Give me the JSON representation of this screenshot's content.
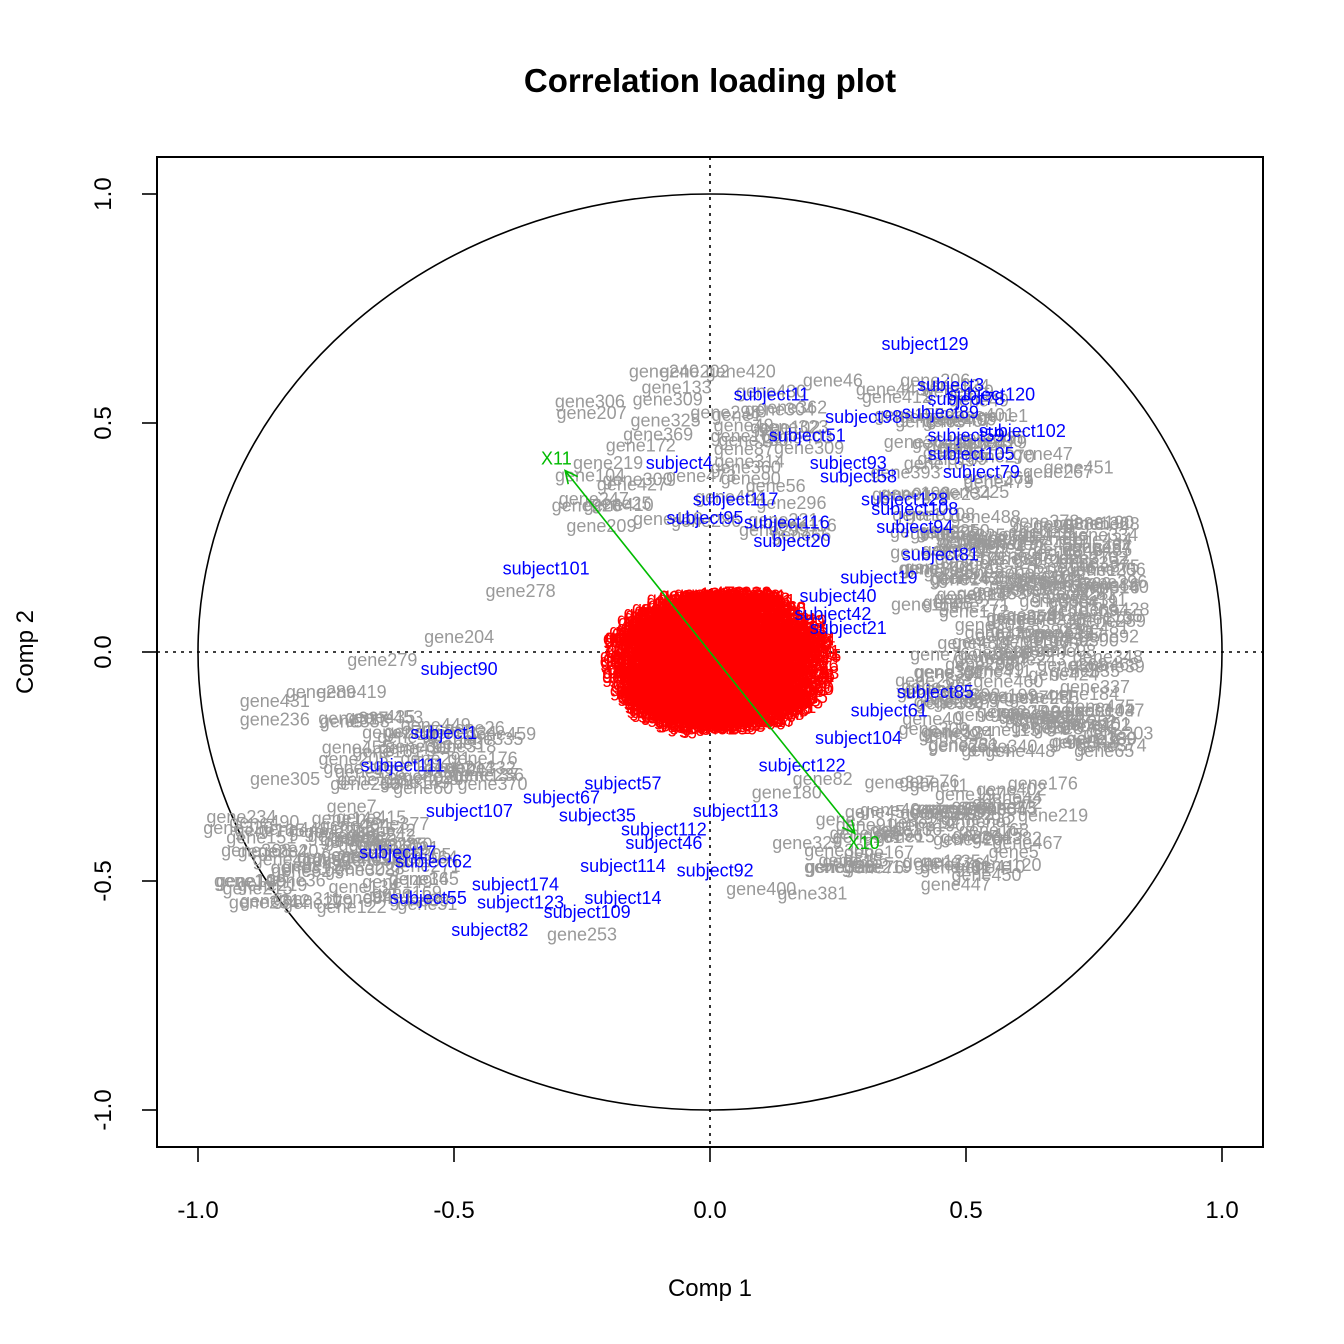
{
  "chart_data": {
    "type": "scatter",
    "title": "Correlation loading plot",
    "xlabel": "Comp 1",
    "ylabel": "Comp 2",
    "xlim": [
      -1.08,
      1.08
    ],
    "ylim": [
      -1.08,
      1.08
    ],
    "x_ticks": [
      -1.0,
      -0.5,
      0.0,
      0.5,
      1.0
    ],
    "x_tick_labels": [
      "-1.0",
      "-0.5",
      "0.0",
      "0.5",
      "1.0"
    ],
    "y_ticks": [
      -1.0,
      -0.5,
      0.0,
      0.5,
      1.0
    ],
    "y_tick_labels": [
      "-1.0",
      "-0.5",
      "0.0",
      "0.5",
      "1.0"
    ],
    "grid": false,
    "reference_lines": {
      "x": 0,
      "y": 0,
      "style": "dotted"
    },
    "unit_circle": true,
    "colors": {
      "genes": "#999999",
      "subjects": "#0000ff",
      "inner": "#ff0000",
      "vectors": "#00bb00"
    },
    "vectors": [
      {
        "label": "X11",
        "x": -0.3,
        "y": 0.42
      },
      {
        "label": "X10",
        "x": 0.3,
        "y": -0.42
      }
    ],
    "series": [
      {
        "group": "subjects",
        "points": [
          {
            "label": "subject129",
            "x": 0.42,
            "y": 0.67
          },
          {
            "label": "subject3",
            "x": 0.47,
            "y": 0.58
          },
          {
            "label": "subject120",
            "x": 0.55,
            "y": 0.56
          },
          {
            "label": "subject78",
            "x": 0.5,
            "y": 0.55
          },
          {
            "label": "subject11",
            "x": 0.12,
            "y": 0.56
          },
          {
            "label": "subject89",
            "x": 0.45,
            "y": 0.52
          },
          {
            "label": "subject98",
            "x": 0.3,
            "y": 0.51
          },
          {
            "label": "subject102",
            "x": 0.61,
            "y": 0.48
          },
          {
            "label": "subject59",
            "x": 0.5,
            "y": 0.47
          },
          {
            "label": "subject51",
            "x": 0.19,
            "y": 0.47
          },
          {
            "label": "subject105",
            "x": 0.51,
            "y": 0.43
          },
          {
            "label": "subject4",
            "x": -0.06,
            "y": 0.41
          },
          {
            "label": "subject93",
            "x": 0.27,
            "y": 0.41
          },
          {
            "label": "subject79",
            "x": 0.53,
            "y": 0.39
          },
          {
            "label": "subject58",
            "x": 0.29,
            "y": 0.38
          },
          {
            "label": "subject117",
            "x": 0.05,
            "y": 0.33
          },
          {
            "label": "subject128",
            "x": 0.38,
            "y": 0.33
          },
          {
            "label": "subject108",
            "x": 0.4,
            "y": 0.31
          },
          {
            "label": "subject95",
            "x": -0.01,
            "y": 0.29
          },
          {
            "label": "subject116",
            "x": 0.15,
            "y": 0.28
          },
          {
            "label": "subject94",
            "x": 0.4,
            "y": 0.27
          },
          {
            "label": "subject20",
            "x": 0.16,
            "y": 0.24
          },
          {
            "label": "subject81",
            "x": 0.45,
            "y": 0.21
          },
          {
            "label": "subject101",
            "x": -0.32,
            "y": 0.18
          },
          {
            "label": "subject19",
            "x": 0.33,
            "y": 0.16
          },
          {
            "label": "subject40",
            "x": 0.25,
            "y": 0.12
          },
          {
            "label": "subject42",
            "x": 0.24,
            "y": 0.08
          },
          {
            "label": "subject21",
            "x": 0.27,
            "y": 0.05
          },
          {
            "label": "subject90",
            "x": -0.49,
            "y": -0.04
          },
          {
            "label": "subject85",
            "x": 0.44,
            "y": -0.09
          },
          {
            "label": "subject61",
            "x": 0.35,
            "y": -0.13
          },
          {
            "label": "subject1",
            "x": -0.52,
            "y": -0.18
          },
          {
            "label": "subject104",
            "x": 0.29,
            "y": -0.19
          },
          {
            "label": "subject122",
            "x": 0.18,
            "y": -0.25
          },
          {
            "label": "subject111",
            "x": -0.6,
            "y": -0.25
          },
          {
            "label": "subject57",
            "x": -0.17,
            "y": -0.29
          },
          {
            "label": "subject67",
            "x": -0.29,
            "y": -0.32
          },
          {
            "label": "subject107",
            "x": -0.47,
            "y": -0.35
          },
          {
            "label": "subject113",
            "x": 0.05,
            "y": -0.35
          },
          {
            "label": "subject35",
            "x": -0.22,
            "y": -0.36
          },
          {
            "label": "subject112",
            "x": -0.09,
            "y": -0.39
          },
          {
            "label": "subject46",
            "x": -0.09,
            "y": -0.42
          },
          {
            "label": "subject17",
            "x": -0.61,
            "y": -0.44
          },
          {
            "label": "subject62",
            "x": -0.54,
            "y": -0.46
          },
          {
            "label": "subject114",
            "x": -0.17,
            "y": -0.47
          },
          {
            "label": "subject92",
            "x": 0.01,
            "y": -0.48
          },
          {
            "label": "subject174",
            "x": -0.38,
            "y": -0.51
          },
          {
            "label": "subject55",
            "x": -0.55,
            "y": -0.54
          },
          {
            "label": "subject14",
            "x": -0.17,
            "y": -0.54
          },
          {
            "label": "subject123",
            "x": -0.37,
            "y": -0.55
          },
          {
            "label": "subject109",
            "x": -0.24,
            "y": -0.57
          },
          {
            "label": "subject82",
            "x": -0.43,
            "y": -0.61
          }
        ]
      },
      {
        "group": "genes",
        "points": [
          {
            "label": "gene240",
            "x": -0.09,
            "y": 0.61
          },
          {
            "label": "gene202",
            "x": -0.03,
            "y": 0.61
          },
          {
            "label": "gene420",
            "x": 0.06,
            "y": 0.61
          },
          {
            "label": "gene206",
            "x": 0.44,
            "y": 0.59
          },
          {
            "label": "gene46",
            "x": 0.24,
            "y": 0.59
          },
          {
            "label": "gene298",
            "x": 0.03,
            "y": 0.52
          },
          {
            "label": "gene47",
            "x": 0.65,
            "y": 0.43
          },
          {
            "label": "gene451",
            "x": 0.72,
            "y": 0.4
          },
          {
            "label": "gene267",
            "x": 0.68,
            "y": 0.39
          },
          {
            "label": "gene360",
            "x": 0.07,
            "y": 0.4
          },
          {
            "label": "gene190",
            "x": 0.76,
            "y": 0.28
          },
          {
            "label": "gene346",
            "x": 0.7,
            "y": 0.22
          },
          {
            "label": "gene278",
            "x": -0.37,
            "y": 0.13
          },
          {
            "label": "gene428",
            "x": 0.79,
            "y": 0.09
          },
          {
            "label": "gene481",
            "x": 0.75,
            "y": 0.05
          },
          {
            "label": "gene204",
            "x": -0.49,
            "y": 0.03
          },
          {
            "label": "gene279",
            "x": -0.64,
            "y": -0.02
          },
          {
            "label": "gene468",
            "x": 0.77,
            "y": -0.03
          },
          {
            "label": "gene419",
            "x": -0.7,
            "y": -0.09
          },
          {
            "label": "gene289",
            "x": -0.76,
            "y": -0.09
          },
          {
            "label": "gene431",
            "x": -0.85,
            "y": -0.11
          },
          {
            "label": "gene236",
            "x": -0.85,
            "y": -0.15
          },
          {
            "label": "gene437",
            "x": 0.78,
            "y": -0.13
          },
          {
            "label": "gene379",
            "x": 0.7,
            "y": -0.17
          },
          {
            "label": "gene348",
            "x": 0.73,
            "y": -0.2
          },
          {
            "label": "gene161",
            "x": -0.63,
            "y": -0.22
          },
          {
            "label": "gene305",
            "x": -0.83,
            "y": -0.28
          },
          {
            "label": "gene82",
            "x": 0.22,
            "y": -0.28
          },
          {
            "label": "gene176",
            "x": 0.65,
            "y": -0.29
          },
          {
            "label": "gene44",
            "x": 0.59,
            "y": -0.32
          },
          {
            "label": "gene180",
            "x": 0.15,
            "y": -0.31
          },
          {
            "label": "gene7",
            "x": -0.7,
            "y": -0.34
          },
          {
            "label": "gene219",
            "x": 0.67,
            "y": -0.36
          },
          {
            "label": "gene382",
            "x": 0.58,
            "y": -0.41
          },
          {
            "label": "gene467",
            "x": 0.62,
            "y": -0.42
          },
          {
            "label": "gene329",
            "x": 0.19,
            "y": -0.42
          },
          {
            "label": "gene167",
            "x": 0.33,
            "y": -0.44
          },
          {
            "label": "gene354",
            "x": 0.48,
            "y": -0.46
          },
          {
            "label": "gene450",
            "x": 0.54,
            "y": -0.49
          },
          {
            "label": "gene447",
            "x": 0.48,
            "y": -0.51
          },
          {
            "label": "gene400",
            "x": 0.1,
            "y": -0.52
          },
          {
            "label": "gene381",
            "x": 0.2,
            "y": -0.53
          },
          {
            "label": "gene122",
            "x": -0.7,
            "y": -0.56
          },
          {
            "label": "gene253",
            "x": -0.25,
            "y": -0.62
          }
        ]
      }
    ]
  }
}
